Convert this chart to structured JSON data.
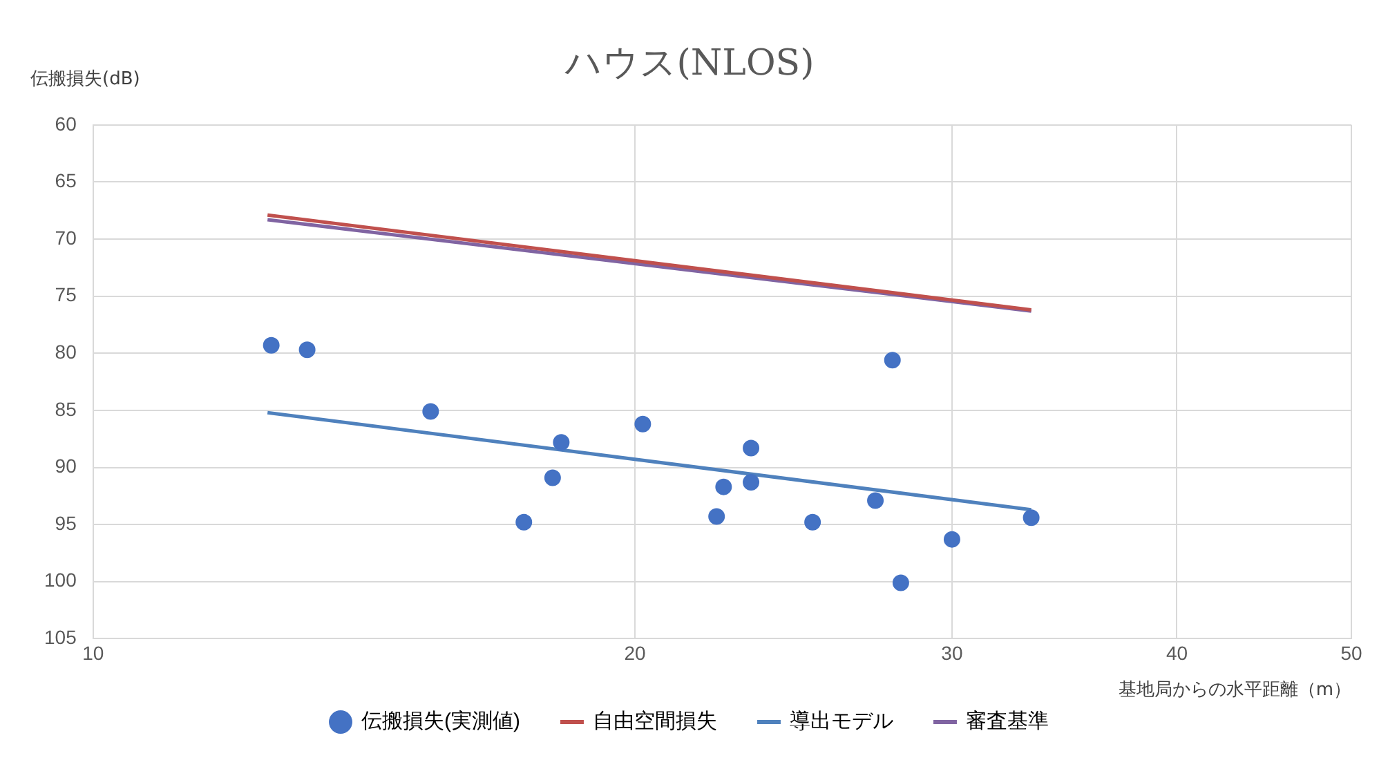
{
  "chart_data": {
    "type": "scatter",
    "title": "ハウス(NLOS)",
    "xlabel": "基地局からの水平距離（m）",
    "ylabel": "伝搬損失(dB)",
    "log": "x",
    "xlim": [
      10,
      50
    ],
    "xticks": [
      10,
      20,
      30,
      40,
      50
    ],
    "ylim": [
      105,
      60
    ],
    "yticks": [
      60,
      65,
      70,
      75,
      80,
      85,
      90,
      95,
      100,
      105
    ],
    "grid": true,
    "legend": "bottom",
    "series": [
      {
        "name": "伝搬損失(実測値)",
        "marker": "circle",
        "color": "#4472c4",
        "x": [
          12.56,
          13.15,
          15.4,
          17.35,
          18.0,
          18.2,
          20.2,
          22.2,
          22.4,
          23.2,
          23.2,
          25.1,
          27.2,
          27.8,
          28.1,
          30.0,
          33.2
        ],
        "values": [
          79.3,
          79.7,
          85.1,
          94.8,
          90.9,
          87.8,
          86.2,
          94.3,
          91.7,
          91.3,
          88.3,
          94.8,
          92.9,
          80.6,
          100.1,
          96.3,
          94.4
        ]
      },
      {
        "name": "自由空間損失",
        "type": "line",
        "color": "#c0504d",
        "x": [
          12.5,
          33.2
        ],
        "values": [
          67.9,
          76.2
        ]
      },
      {
        "name": "導出モデル",
        "type": "line",
        "color": "#4f81bd",
        "x": [
          12.5,
          33.2
        ],
        "values": [
          85.2,
          93.7
        ]
      },
      {
        "name": "審査基準",
        "type": "line",
        "color": "#8064a2",
        "x": [
          12.5,
          33.2
        ],
        "values": [
          68.3,
          76.3
        ]
      }
    ]
  }
}
